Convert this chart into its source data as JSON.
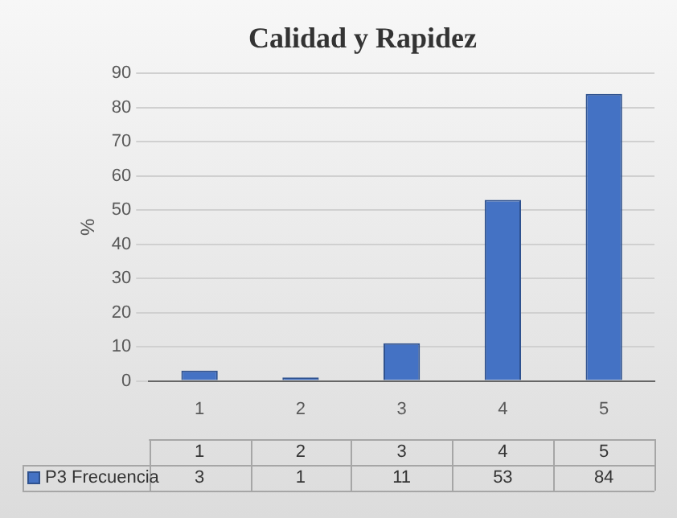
{
  "chart_data": {
    "type": "bar",
    "title": "Calidad y Rapidez",
    "ylabel": "%",
    "categories": [
      "1",
      "2",
      "3",
      "4",
      "5"
    ],
    "series": [
      {
        "name": "P3 Frecuencia",
        "color": "#4472c4",
        "values": [
          3,
          1,
          11,
          53,
          84
        ]
      }
    ],
    "ylim": [
      0,
      90
    ],
    "yticks": [
      0,
      10,
      20,
      30,
      40,
      50,
      60,
      70,
      80,
      90
    ],
    "grid": "y",
    "legend": "bottom",
    "data_labels": true
  }
}
